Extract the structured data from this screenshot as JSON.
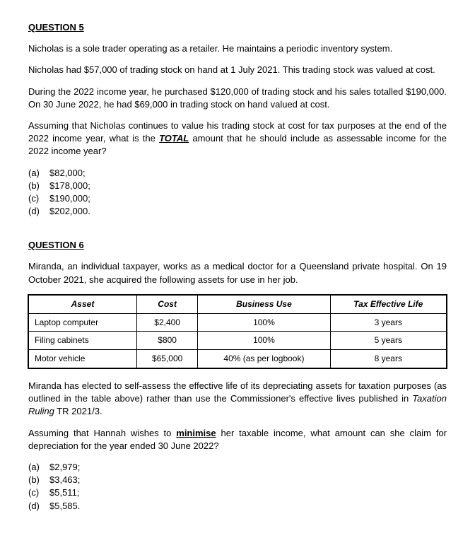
{
  "q5": {
    "heading": "QUESTION 5",
    "p1": "Nicholas is a sole trader operating as a retailer. He maintains a periodic inventory system.",
    "p2": "Nicholas had $57,000 of trading stock on hand at 1 July 2021. This trading stock was valued at cost.",
    "p3": "During the 2022 income year, he purchased $120,000 of trading stock and his sales totalled $190,000. On 30 June 2022, he had $69,000 in trading stock on hand valued at cost.",
    "p4a": "Assuming that Nicholas continues to value his trading stock at cost for tax purposes at the end of the 2022 income year, what is the ",
    "p4b_total": "TOTAL",
    "p4c": " amount that he should include as assessable income for the 2022 income year?",
    "options": [
      {
        "letter": "(a)",
        "text": "$82,000;"
      },
      {
        "letter": "(b)",
        "text": "$178,000;"
      },
      {
        "letter": "(c)",
        "text": "$190,000;"
      },
      {
        "letter": "(d)",
        "text": "$202,000."
      }
    ]
  },
  "q6": {
    "heading": "QUESTION 6",
    "p1": "Miranda, an individual taxpayer, works as a medical doctor for a Queensland private hospital. On 19 October 2021, she acquired the following assets for use in her job.",
    "table": {
      "headers": [
        "Asset",
        "Cost",
        "Business Use",
        "Tax Effective Life"
      ],
      "rows": [
        [
          "Laptop computer",
          "$2,400",
          "100%",
          "3 years"
        ],
        [
          "Filing cabinets",
          "$800",
          "100%",
          "5 years"
        ],
        [
          "Motor vehicle",
          "$65,000",
          "40% (as per logbook)",
          "8 years"
        ]
      ]
    },
    "p2a": "Miranda has elected to self-assess the effective life of its depreciating assets for taxation purposes (as outlined in the table above) rather than use the Commissioner's effective lives published in ",
    "p2b_italic": "Taxation Ruling",
    "p2c": " TR 2021/3.",
    "p3a": "Assuming that Hannah wishes to ",
    "p3b_min": "minimise",
    "p3c": " her taxable income, what amount can she claim for depreciation for the year ended 30 June 2022?",
    "options": [
      {
        "letter": "(a)",
        "text": "$2,979;"
      },
      {
        "letter": "(b)",
        "text": "$3,463;"
      },
      {
        "letter": "(c)",
        "text": "$5,511;"
      },
      {
        "letter": "(d)",
        "text": "$5,585."
      }
    ]
  }
}
